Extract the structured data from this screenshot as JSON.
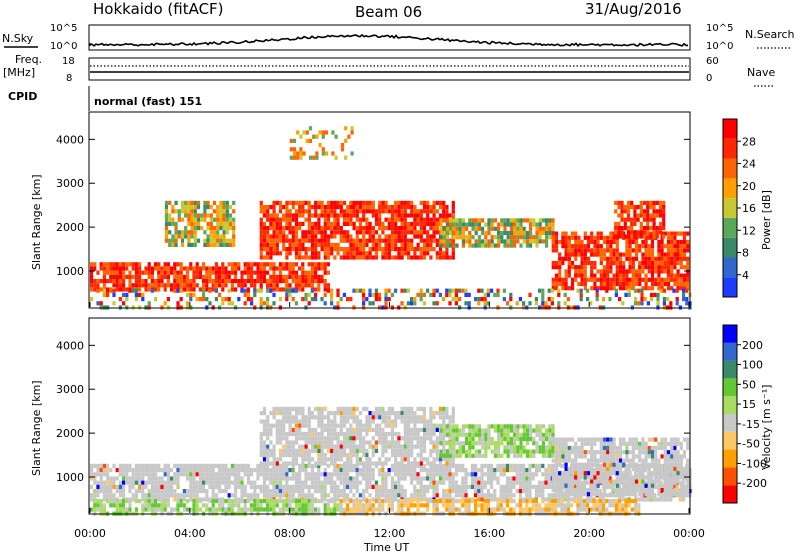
{
  "header": {
    "station": "Hokkaido (fitACF)",
    "beam": "Beam 06",
    "date": "31/Aug/2016"
  },
  "top_panels": {
    "nsky_label": "N.Sky",
    "nsearch_label": "N.Search",
    "freq_label_1": "Freq.",
    "freq_label_2": "[MHz]",
    "nave_label": "Nave",
    "cpid_label": "CPID",
    "cpid_text": "normal (fast) 151",
    "noise_left_ticks": [
      "10^5",
      "10^0"
    ],
    "noise_right_ticks": [
      "10^5",
      "10^0"
    ],
    "freq_left_ticks": [
      "18",
      "8"
    ],
    "freq_right_ticks": [
      "60",
      "0"
    ]
  },
  "colors": {
    "power_scale": [
      "#1e3cff",
      "#3366cc",
      "#3a8a6a",
      "#5aa85a",
      "#c8c832",
      "#ffa000",
      "#ff6400",
      "#ff2800",
      "#ff0000"
    ],
    "velocity_scale": [
      "#ff0000",
      "#ff5000",
      "#ffa000",
      "#ffc864",
      "#c8c8c8",
      "#aadc64",
      "#64c832",
      "#3a8a6a",
      "#3366cc",
      "#0000ff"
    ]
  },
  "chart_data": [
    {
      "type": "heatmap",
      "name": "power",
      "ylabel": "Slant Range [km]",
      "colorbar_label": "Power [dB]",
      "colorbar_ticks": [
        "4",
        "8",
        "12",
        "16",
        "20",
        "24",
        "28"
      ],
      "ylim": [
        180,
        4600
      ],
      "y_ticks": [
        "1000",
        "2000",
        "3000",
        "4000"
      ],
      "y_tick_values": [
        1000,
        2000,
        3000,
        4000
      ],
      "x_ticks": [
        "00:00",
        "04:00",
        "08:00",
        "12:00",
        "16:00",
        "20:00",
        "00:00"
      ],
      "x_tick_values": [
        0,
        4,
        8,
        12,
        16,
        20,
        24
      ],
      "xlim": [
        0,
        24
      ],
      "xlabel": "",
      "regions": [
        {
          "t0": 0.0,
          "t1": 9.5,
          "r0": 600,
          "r1": 1200,
          "level": "strong"
        },
        {
          "t0": 6.8,
          "t1": 14.5,
          "r0": 1300,
          "r1": 2600,
          "level": "strong"
        },
        {
          "t0": 3.0,
          "t1": 5.8,
          "r0": 1600,
          "r1": 2600,
          "level": "medium"
        },
        {
          "t0": 14.0,
          "t1": 18.5,
          "r0": 1600,
          "r1": 2200,
          "level": "medium"
        },
        {
          "t0": 18.5,
          "t1": 24.0,
          "r0": 600,
          "r1": 1900,
          "level": "strong"
        },
        {
          "t0": 21.0,
          "t1": 23.0,
          "r0": 1800,
          "r1": 2600,
          "level": "strong"
        },
        {
          "t0": 0.0,
          "t1": 24.0,
          "r0": 200,
          "r1": 600,
          "level": "mixed"
        },
        {
          "t0": 8.0,
          "t1": 10.5,
          "r0": 3600,
          "r1": 4300,
          "level": "weak"
        }
      ]
    },
    {
      "type": "heatmap",
      "name": "velocity",
      "ylabel": "Slant Range [km]",
      "colorbar_label": "Velocity [m s⁻¹]",
      "colorbar_ticks": [
        "-200",
        "-100",
        "-50",
        "-15",
        "15",
        "50",
        "100",
        "200"
      ],
      "ylim": [
        180,
        4600
      ],
      "y_ticks": [
        "1000",
        "2000",
        "3000",
        "4000"
      ],
      "y_tick_values": [
        1000,
        2000,
        3000,
        4000
      ],
      "x_ticks": [
        "00:00",
        "04:00",
        "08:00",
        "12:00",
        "16:00",
        "20:00",
        "00:00"
      ],
      "x_tick_values": [
        0,
        4,
        8,
        12,
        16,
        20,
        24
      ],
      "xlim": [
        0,
        24
      ],
      "xlabel": "Time UT",
      "regions": [
        {
          "t0": 0.0,
          "t1": 24.0,
          "r0": 500,
          "r1": 1300,
          "level": "grey"
        },
        {
          "t0": 6.8,
          "t1": 14.5,
          "r0": 1300,
          "r1": 2600,
          "level": "grey"
        },
        {
          "t0": 14.0,
          "t1": 18.5,
          "r0": 1500,
          "r1": 2200,
          "level": "green"
        },
        {
          "t0": 18.5,
          "t1": 24.0,
          "r0": 600,
          "r1": 1900,
          "level": "grey"
        },
        {
          "t0": 10.0,
          "t1": 22.0,
          "r0": 200,
          "r1": 500,
          "level": "orange"
        },
        {
          "t0": 0.0,
          "t1": 10.0,
          "r0": 200,
          "r1": 500,
          "level": "green"
        }
      ]
    }
  ]
}
